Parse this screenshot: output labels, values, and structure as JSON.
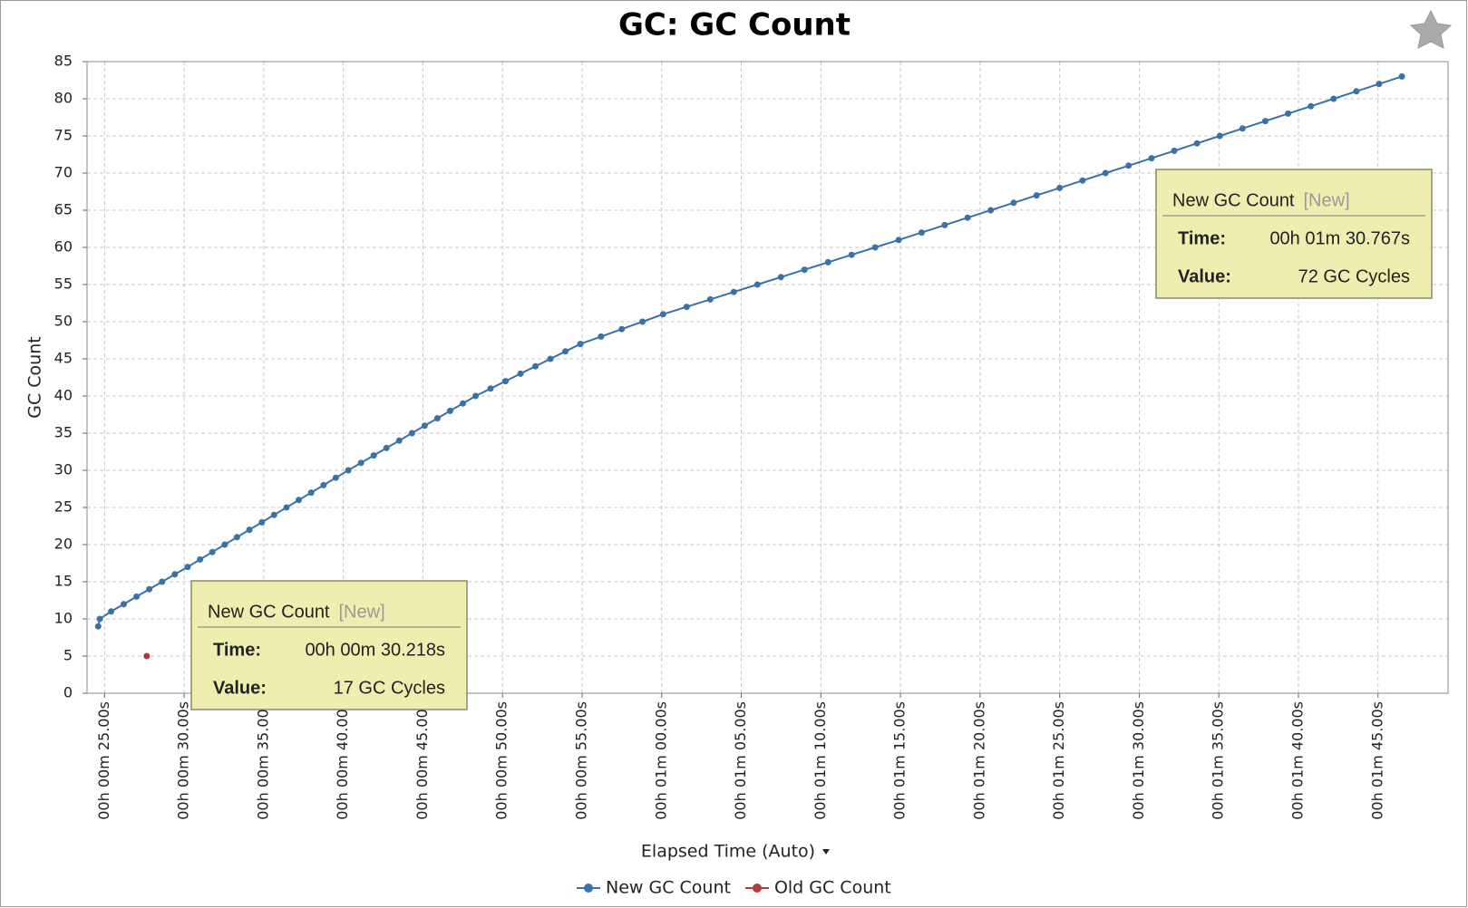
{
  "chart_data": {
    "type": "line",
    "title": "GC: GC Count",
    "x_label": "Elapsed Time (Auto)",
    "y_label": "GC Count",
    "xlim": [
      23.9,
      109.4
    ],
    "ylim": [
      0,
      85
    ],
    "xticks": [
      {
        "value": 25,
        "label": "00h 00m 25.00s"
      },
      {
        "value": 30,
        "label": "00h 00m 30.00s"
      },
      {
        "value": 35,
        "label": "00h 00m 35.00s"
      },
      {
        "value": 40,
        "label": "00h 00m 40.00s"
      },
      {
        "value": 45,
        "label": "00h 00m 45.00s"
      },
      {
        "value": 50,
        "label": "00h 00m 50.00s"
      },
      {
        "value": 55,
        "label": "00h 00m 55.00s"
      },
      {
        "value": 60,
        "label": "00h 01m 00.00s"
      },
      {
        "value": 65,
        "label": "00h 01m 05.00s"
      },
      {
        "value": 70,
        "label": "00h 01m 10.00s"
      },
      {
        "value": 75,
        "label": "00h 01m 15.00s"
      },
      {
        "value": 80,
        "label": "00h 01m 20.00s"
      },
      {
        "value": 85,
        "label": "00h 01m 25.00s"
      },
      {
        "value": 90,
        "label": "00h 01m 30.00s"
      },
      {
        "value": 95,
        "label": "00h 01m 35.00s"
      },
      {
        "value": 100,
        "label": "00h 01m 40.00s"
      },
      {
        "value": 105,
        "label": "00h 01m 45.00s"
      }
    ],
    "yticks": [
      0,
      5,
      10,
      15,
      20,
      25,
      30,
      35,
      40,
      45,
      50,
      55,
      60,
      65,
      70,
      75,
      80,
      85
    ],
    "grid": true,
    "legend": "bottom",
    "series": [
      {
        "name": "New GC Count",
        "color": "#3a72a8",
        "x": [
          24.6,
          24.7,
          25.41,
          26.21,
          27.01,
          27.81,
          28.61,
          29.41,
          30.22,
          31.0,
          31.77,
          32.55,
          33.32,
          34.1,
          34.88,
          35.65,
          36.43,
          37.2,
          37.98,
          38.76,
          39.53,
          40.31,
          41.11,
          41.91,
          42.71,
          43.51,
          44.31,
          45.11,
          45.91,
          46.71,
          47.51,
          48.31,
          49.25,
          50.19,
          51.13,
          52.07,
          53.01,
          53.95,
          54.89,
          56.19,
          57.49,
          58.79,
          60.09,
          61.57,
          63.05,
          64.53,
          66.01,
          67.49,
          68.97,
          70.45,
          71.93,
          73.41,
          74.89,
          76.33,
          77.78,
          79.22,
          80.67,
          82.11,
          83.55,
          85.0,
          86.44,
          87.88,
          89.33,
          90.77,
          92.2,
          93.63,
          95.06,
          96.49,
          97.92,
          99.35,
          100.78,
          102.21,
          103.64,
          105.07,
          106.5
        ],
        "values": [
          9,
          10,
          11,
          12,
          13,
          14,
          15,
          16,
          17,
          18,
          19,
          20,
          21,
          22,
          23,
          24,
          25,
          26,
          27,
          28,
          29,
          30,
          31,
          32,
          33,
          34,
          35,
          36,
          37,
          38,
          39,
          40,
          41,
          42,
          43,
          44,
          45,
          46,
          47,
          48,
          49,
          50,
          51,
          52,
          53,
          54,
          55,
          56,
          57,
          58,
          59,
          60,
          61,
          62,
          63,
          64,
          65,
          66,
          67,
          68,
          69,
          70,
          71,
          72,
          73,
          74,
          75,
          76,
          77,
          78,
          79,
          80,
          81,
          82,
          83
        ]
      },
      {
        "name": "Old GC Count",
        "color": "#b23b3b",
        "x": [
          27.65
        ],
        "values": [
          5
        ]
      }
    ],
    "tooltips": [
      {
        "series": "New GC Count",
        "tag": "[New]",
        "time_key": "Time:",
        "time": "00h 01m 30.767s",
        "value_key": "Value:",
        "value": "72 GC Cycles"
      },
      {
        "series": "New GC Count",
        "tag": "[New]",
        "time_key": "Time:",
        "time": "00h 00m 30.218s",
        "value_key": "Value:",
        "value": "17 GC Cycles"
      }
    ]
  }
}
